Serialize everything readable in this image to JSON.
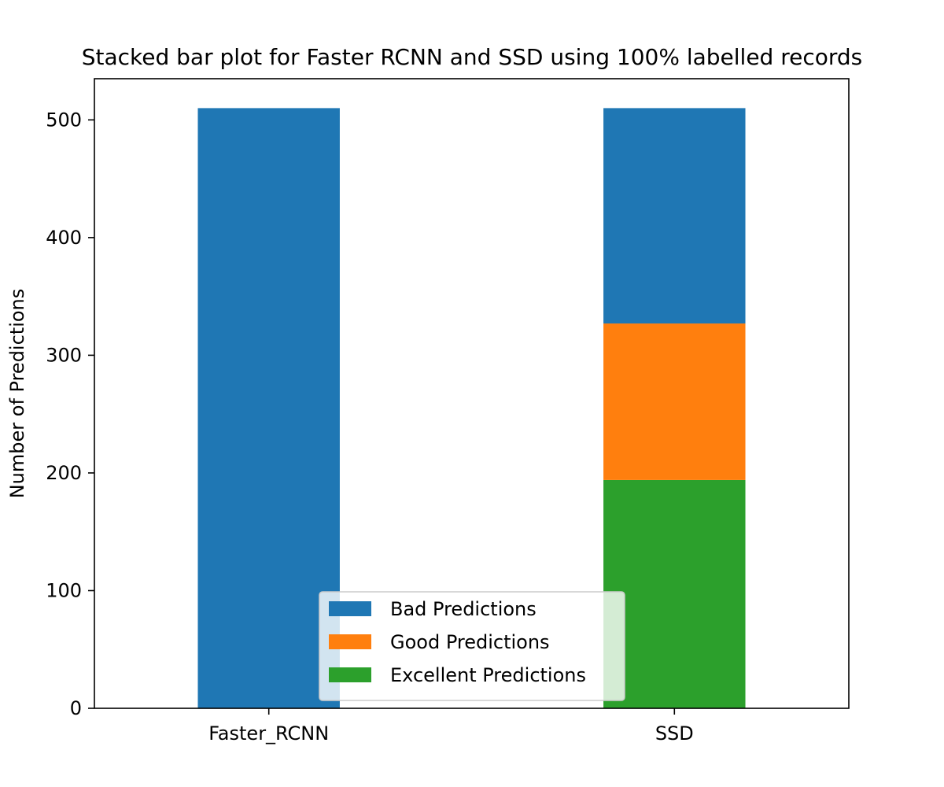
{
  "chart_data": {
    "type": "bar",
    "stacked": true,
    "title": "Stacked bar plot for Faster RCNN and SSD using 100% labelled records",
    "xlabel": "",
    "ylabel": "Number of Predictions",
    "categories": [
      "Faster_RCNN",
      "SSD"
    ],
    "ylim": [
      0,
      535
    ],
    "yticks": [
      0,
      100,
      200,
      300,
      400,
      500
    ],
    "grid": false,
    "legend_position": "lower-center",
    "series": [
      {
        "name": "Excellent Predictions",
        "color": "#2ca02c",
        "values": [
          0,
          194
        ]
      },
      {
        "name": "Good Predictions",
        "color": "#ff7f0e",
        "values": [
          0,
          133
        ]
      },
      {
        "name": "Bad Predictions",
        "color": "#1f77b4",
        "values": [
          510,
          183
        ]
      }
    ],
    "legend_order": [
      "Bad Predictions",
      "Good Predictions",
      "Excellent Predictions"
    ]
  }
}
